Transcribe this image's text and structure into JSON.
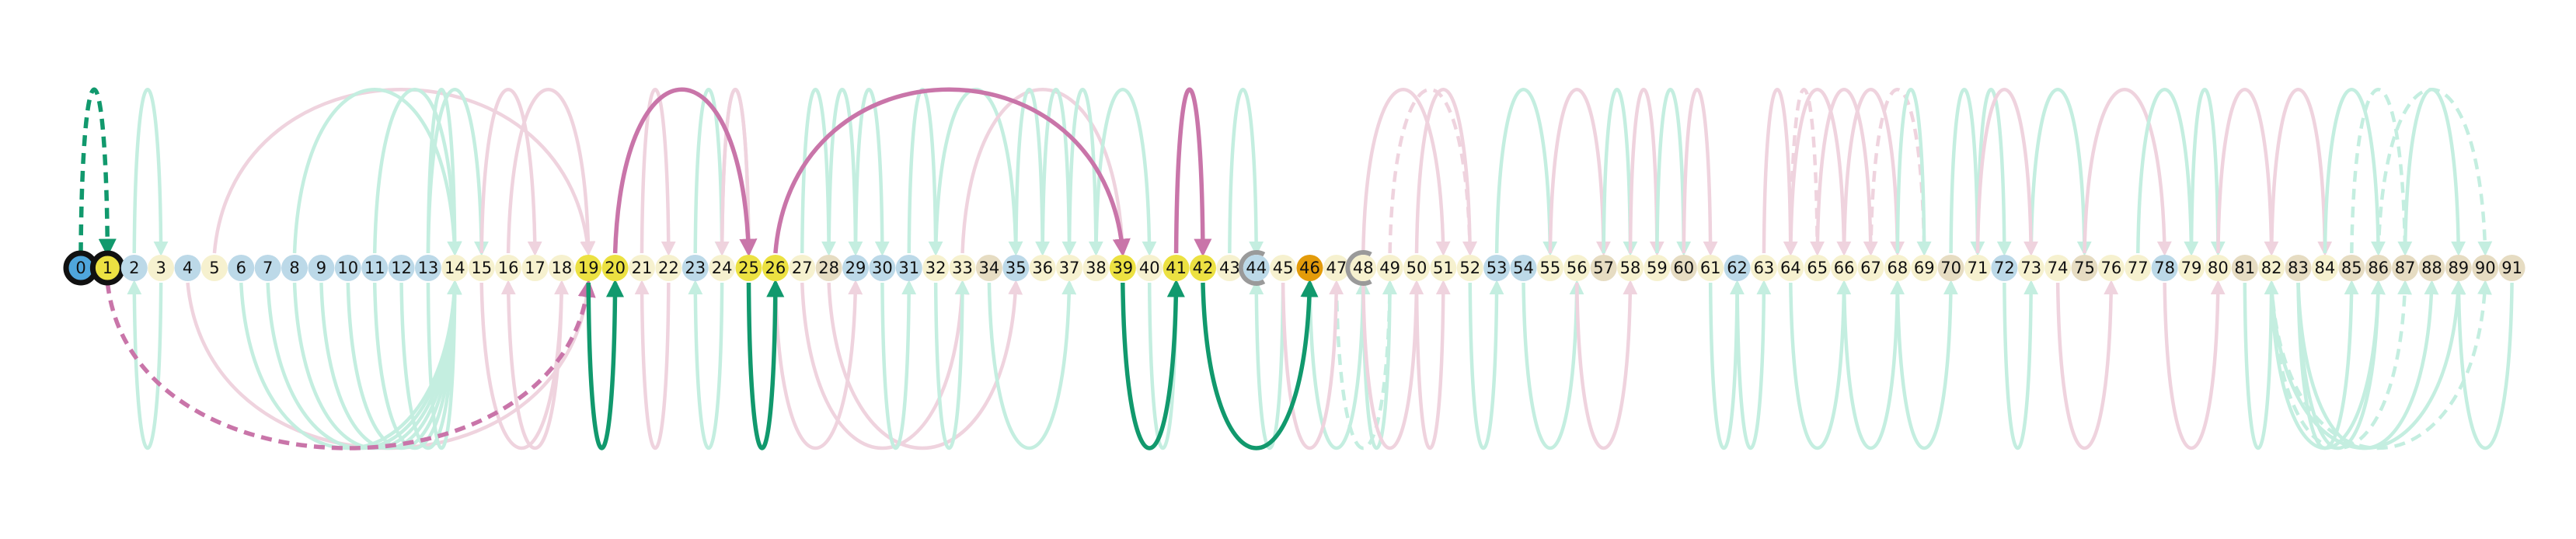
{
  "colors": {
    "node_blue": "#bcd9e8",
    "node_cream": "#f6f1cf",
    "node_tan": "#e6dcc2",
    "node_yellow": "#ece142",
    "node_orange": "#e39b0a",
    "node_start_fill": "#4fa6dc",
    "ring_black": "#111111",
    "ring_gray": "#9a9a9a",
    "green_faint": "#c4eee0",
    "pink_faint": "#efd3de",
    "green_strong": "#11996d",
    "pink_strong": "#c975a9"
  },
  "nodes": [
    {
      "label": "0",
      "fill": "node_start_fill",
      "ring": "black"
    },
    {
      "label": "1",
      "fill": "node_yellow",
      "ring": "black"
    },
    {
      "label": "2",
      "fill": "node_blue"
    },
    {
      "label": "3",
      "fill": "node_cream"
    },
    {
      "label": "4",
      "fill": "node_blue"
    },
    {
      "label": "5",
      "fill": "node_cream"
    },
    {
      "label": "6",
      "fill": "node_blue"
    },
    {
      "label": "7",
      "fill": "node_blue"
    },
    {
      "label": "8",
      "fill": "node_blue"
    },
    {
      "label": "9",
      "fill": "node_blue"
    },
    {
      "label": "10",
      "fill": "node_blue"
    },
    {
      "label": "11",
      "fill": "node_blue"
    },
    {
      "label": "12",
      "fill": "node_blue"
    },
    {
      "label": "13",
      "fill": "node_blue"
    },
    {
      "label": "14",
      "fill": "node_cream"
    },
    {
      "label": "15",
      "fill": "node_cream"
    },
    {
      "label": "16",
      "fill": "node_cream"
    },
    {
      "label": "17",
      "fill": "node_cream"
    },
    {
      "label": "18",
      "fill": "node_cream"
    },
    {
      "label": "19",
      "fill": "node_yellow"
    },
    {
      "label": "20",
      "fill": "node_yellow"
    },
    {
      "label": "21",
      "fill": "node_cream"
    },
    {
      "label": "22",
      "fill": "node_cream"
    },
    {
      "label": "23",
      "fill": "node_blue"
    },
    {
      "label": "24",
      "fill": "node_cream"
    },
    {
      "label": "25",
      "fill": "node_yellow"
    },
    {
      "label": "26",
      "fill": "node_yellow"
    },
    {
      "label": "27",
      "fill": "node_cream"
    },
    {
      "label": "28",
      "fill": "node_tan"
    },
    {
      "label": "29",
      "fill": "node_blue"
    },
    {
      "label": "30",
      "fill": "node_blue"
    },
    {
      "label": "31",
      "fill": "node_blue"
    },
    {
      "label": "32",
      "fill": "node_cream"
    },
    {
      "label": "33",
      "fill": "node_cream"
    },
    {
      "label": "34",
      "fill": "node_tan"
    },
    {
      "label": "35",
      "fill": "node_blue"
    },
    {
      "label": "36",
      "fill": "node_cream"
    },
    {
      "label": "37",
      "fill": "node_cream"
    },
    {
      "label": "38",
      "fill": "node_cream"
    },
    {
      "label": "39",
      "fill": "node_yellow"
    },
    {
      "label": "40",
      "fill": "node_cream"
    },
    {
      "label": "41",
      "fill": "node_yellow"
    },
    {
      "label": "42",
      "fill": "node_yellow"
    },
    {
      "label": "43",
      "fill": "node_cream"
    },
    {
      "label": "44",
      "fill": "node_blue",
      "ring": "gray"
    },
    {
      "label": "45",
      "fill": "node_cream"
    },
    {
      "label": "46",
      "fill": "node_orange"
    },
    {
      "label": "47",
      "fill": "node_cream"
    },
    {
      "label": "48",
      "fill": "node_cream",
      "ring": "gray"
    },
    {
      "label": "49",
      "fill": "node_cream"
    },
    {
      "label": "50",
      "fill": "node_cream"
    },
    {
      "label": "51",
      "fill": "node_cream"
    },
    {
      "label": "52",
      "fill": "node_cream"
    },
    {
      "label": "53",
      "fill": "node_blue"
    },
    {
      "label": "54",
      "fill": "node_blue"
    },
    {
      "label": "55",
      "fill": "node_cream"
    },
    {
      "label": "56",
      "fill": "node_cream"
    },
    {
      "label": "57",
      "fill": "node_tan"
    },
    {
      "label": "58",
      "fill": "node_cream"
    },
    {
      "label": "59",
      "fill": "node_cream"
    },
    {
      "label": "60",
      "fill": "node_tan"
    },
    {
      "label": "61",
      "fill": "node_cream"
    },
    {
      "label": "62",
      "fill": "node_blue"
    },
    {
      "label": "63",
      "fill": "node_cream"
    },
    {
      "label": "64",
      "fill": "node_cream"
    },
    {
      "label": "65",
      "fill": "node_cream"
    },
    {
      "label": "66",
      "fill": "node_cream"
    },
    {
      "label": "67",
      "fill": "node_cream"
    },
    {
      "label": "68",
      "fill": "node_cream"
    },
    {
      "label": "69",
      "fill": "node_cream"
    },
    {
      "label": "70",
      "fill": "node_tan"
    },
    {
      "label": "71",
      "fill": "node_cream"
    },
    {
      "label": "72",
      "fill": "node_blue"
    },
    {
      "label": "73",
      "fill": "node_cream"
    },
    {
      "label": "74",
      "fill": "node_cream"
    },
    {
      "label": "75",
      "fill": "node_tan"
    },
    {
      "label": "76",
      "fill": "node_cream"
    },
    {
      "label": "77",
      "fill": "node_cream"
    },
    {
      "label": "78",
      "fill": "node_blue"
    },
    {
      "label": "79",
      "fill": "node_cream"
    },
    {
      "label": "80",
      "fill": "node_cream"
    },
    {
      "label": "81",
      "fill": "node_tan"
    },
    {
      "label": "82",
      "fill": "node_cream"
    },
    {
      "label": "83",
      "fill": "node_tan"
    },
    {
      "label": "84",
      "fill": "node_cream"
    },
    {
      "label": "85",
      "fill": "node_tan"
    },
    {
      "label": "86",
      "fill": "node_tan"
    },
    {
      "label": "87",
      "fill": "node_tan"
    },
    {
      "label": "88",
      "fill": "node_tan"
    },
    {
      "label": "89",
      "fill": "node_tan"
    },
    {
      "label": "90",
      "fill": "node_tan"
    },
    {
      "label": "91",
      "fill": "node_tan"
    }
  ],
  "edges_faint": [
    {
      "from": 2,
      "to": 3,
      "side": "above",
      "color": "green_faint"
    },
    {
      "from": 3,
      "to": 2,
      "side": "below",
      "color": "green_faint"
    },
    {
      "from": 5,
      "to": 19,
      "side": "above",
      "color": "pink_faint"
    },
    {
      "from": 4,
      "to": 19,
      "side": "below",
      "color": "pink_faint"
    },
    {
      "from": 6,
      "to": 14,
      "side": "below",
      "color": "green_faint"
    },
    {
      "from": 7,
      "to": 14,
      "side": "below",
      "color": "green_faint"
    },
    {
      "from": 8,
      "to": 14,
      "side": "below",
      "color": "green_faint"
    },
    {
      "from": 9,
      "to": 14,
      "side": "below",
      "color": "green_faint"
    },
    {
      "from": 10,
      "to": 14,
      "side": "below",
      "color": "green_faint"
    },
    {
      "from": 11,
      "to": 14,
      "side": "below",
      "color": "green_faint"
    },
    {
      "from": 12,
      "to": 14,
      "side": "below",
      "color": "green_faint"
    },
    {
      "from": 13,
      "to": 14,
      "side": "below",
      "color": "green_faint"
    },
    {
      "from": 8,
      "to": 14,
      "side": "above",
      "color": "green_faint"
    },
    {
      "from": 11,
      "to": 14,
      "side": "above",
      "color": "green_faint"
    },
    {
      "from": 13,
      "to": 14,
      "side": "above",
      "color": "green_faint"
    },
    {
      "from": 13,
      "to": 15,
      "side": "above",
      "color": "green_faint"
    },
    {
      "from": 15,
      "to": 17,
      "side": "above",
      "color": "pink_faint"
    },
    {
      "from": 16,
      "to": 19,
      "side": "above",
      "color": "pink_faint"
    },
    {
      "from": 18,
      "to": 16,
      "side": "below",
      "color": "pink_faint"
    },
    {
      "from": 15,
      "to": 18,
      "side": "below",
      "color": "pink_faint"
    },
    {
      "from": 21,
      "to": 22,
      "side": "above",
      "color": "pink_faint"
    },
    {
      "from": 22,
      "to": 21,
      "side": "below",
      "color": "pink_faint"
    },
    {
      "from": 23,
      "to": 24,
      "side": "above",
      "color": "green_faint"
    },
    {
      "from": 24,
      "to": 23,
      "side": "below",
      "color": "green_faint"
    },
    {
      "from": 24,
      "to": 25,
      "side": "above",
      "color": "pink_faint"
    },
    {
      "from": 25,
      "to": 24,
      "side": "above",
      "color": "pink_faint"
    },
    {
      "from": 27,
      "to": 28,
      "side": "above",
      "color": "green_faint"
    },
    {
      "from": 28,
      "to": 29,
      "side": "above",
      "color": "green_faint"
    },
    {
      "from": 26,
      "to": 29,
      "side": "below",
      "color": "pink_faint"
    },
    {
      "from": 27,
      "to": 33,
      "side": "below",
      "color": "pink_faint"
    },
    {
      "from": 28,
      "to": 35,
      "side": "below",
      "color": "pink_faint"
    },
    {
      "from": 29,
      "to": 30,
      "side": "above",
      "color": "green_faint"
    },
    {
      "from": 30,
      "to": 31,
      "side": "below",
      "color": "green_faint"
    },
    {
      "from": 31,
      "to": 32,
      "side": "above",
      "color": "green_faint"
    },
    {
      "from": 32,
      "to": 33,
      "side": "below",
      "color": "green_faint"
    },
    {
      "from": 32,
      "to": 35,
      "side": "above",
      "color": "green_faint"
    },
    {
      "from": 33,
      "to": 39,
      "side": "above",
      "color": "pink_faint"
    },
    {
      "from": 34,
      "to": 37,
      "side": "below",
      "color": "green_faint"
    },
    {
      "from": 35,
      "to": 36,
      "side": "above",
      "color": "green_faint"
    },
    {
      "from": 36,
      "to": 37,
      "side": "above",
      "color": "green_faint"
    },
    {
      "from": 37,
      "to": 38,
      "side": "above",
      "color": "green_faint"
    },
    {
      "from": 38,
      "to": 40,
      "side": "above",
      "color": "green_faint"
    },
    {
      "from": 40,
      "to": 41,
      "side": "below",
      "color": "green_faint"
    },
    {
      "from": 43,
      "to": 44,
      "side": "above",
      "color": "green_faint"
    },
    {
      "from": 45,
      "to": 44,
      "side": "below",
      "color": "green_faint"
    },
    {
      "from": 46,
      "to": 48,
      "side": "below",
      "color": "green_faint"
    },
    {
      "from": 47,
      "to": 49,
      "side": "below",
      "color": "green_faint",
      "dashed": true
    },
    {
      "from": 48,
      "to": 49,
      "side": "below",
      "color": "green_faint"
    },
    {
      "from": 45,
      "to": 47,
      "side": "below",
      "color": "pink_faint"
    },
    {
      "from": 48,
      "to": 50,
      "side": "below",
      "color": "pink_faint"
    },
    {
      "from": 50,
      "to": 52,
      "side": "above",
      "color": "pink_faint"
    },
    {
      "from": 49,
      "to": 52,
      "side": "above",
      "color": "pink_faint",
      "dashed": true
    },
    {
      "from": 48,
      "to": 51,
      "side": "above",
      "color": "pink_faint"
    },
    {
      "from": 50,
      "to": 51,
      "side": "below",
      "color": "pink_faint"
    },
    {
      "from": 52,
      "to": 53,
      "side": "below",
      "color": "green_faint"
    },
    {
      "from": 53,
      "to": 55,
      "side": "above",
      "color": "green_faint"
    },
    {
      "from": 54,
      "to": 56,
      "side": "below",
      "color": "green_faint"
    },
    {
      "from": 55,
      "to": 57,
      "side": "above",
      "color": "pink_faint"
    },
    {
      "from": 56,
      "to": 58,
      "side": "below",
      "color": "pink_faint"
    },
    {
      "from": 57,
      "to": 58,
      "side": "above",
      "color": "green_faint"
    },
    {
      "from": 58,
      "to": 59,
      "side": "above",
      "color": "pink_faint"
    },
    {
      "from": 59,
      "to": 60,
      "side": "above",
      "color": "green_faint"
    },
    {
      "from": 60,
      "to": 61,
      "side": "above",
      "color": "pink_faint"
    },
    {
      "from": 61,
      "to": 62,
      "side": "below",
      "color": "green_faint"
    },
    {
      "from": 62,
      "to": 63,
      "side": "below",
      "color": "green_faint"
    },
    {
      "from": 63,
      "to": 64,
      "side": "above",
      "color": "pink_faint"
    },
    {
      "from": 64,
      "to": 65,
      "side": "above",
      "color": "pink_faint",
      "dashed": true
    },
    {
      "from": 64,
      "to": 66,
      "side": "above",
      "color": "pink_faint"
    },
    {
      "from": 65,
      "to": 67,
      "side": "above",
      "color": "pink_faint"
    },
    {
      "from": 66,
      "to": 68,
      "side": "above",
      "color": "pink_faint"
    },
    {
      "from": 67,
      "to": 69,
      "side": "above",
      "color": "pink_faint",
      "dashed": true
    },
    {
      "from": 68,
      "to": 69,
      "side": "above",
      "color": "green_faint"
    },
    {
      "from": 64,
      "to": 66,
      "side": "below",
      "color": "green_faint"
    },
    {
      "from": 66,
      "to": 68,
      "side": "below",
      "color": "green_faint"
    },
    {
      "from": 68,
      "to": 70,
      "side": "below",
      "color": "green_faint"
    },
    {
      "from": 70,
      "to": 71,
      "side": "above",
      "color": "green_faint"
    },
    {
      "from": 71,
      "to": 72,
      "side": "above",
      "color": "green_faint"
    },
    {
      "from": 72,
      "to": 73,
      "side": "below",
      "color": "green_faint"
    },
    {
      "from": 73,
      "to": 75,
      "side": "above",
      "color": "green_faint"
    },
    {
      "from": 71,
      "to": 73,
      "side": "above",
      "color": "pink_faint"
    },
    {
      "from": 74,
      "to": 76,
      "side": "below",
      "color": "pink_faint"
    },
    {
      "from": 75,
      "to": 78,
      "side": "above",
      "color": "pink_faint"
    },
    {
      "from": 77,
      "to": 79,
      "side": "above",
      "color": "green_faint"
    },
    {
      "from": 79,
      "to": 80,
      "side": "above",
      "color": "green_faint"
    },
    {
      "from": 78,
      "to": 80,
      "side": "below",
      "color": "pink_faint"
    },
    {
      "from": 80,
      "to": 82,
      "side": "above",
      "color": "pink_faint"
    },
    {
      "from": 82,
      "to": 84,
      "side": "above",
      "color": "pink_faint"
    },
    {
      "from": 81,
      "to": 82,
      "side": "below",
      "color": "green_faint"
    },
    {
      "from": 83,
      "to": 85,
      "side": "below",
      "color": "green_faint"
    },
    {
      "from": 83,
      "to": 86,
      "side": "below",
      "color": "green_faint"
    },
    {
      "from": 82,
      "to": 86,
      "side": "below",
      "color": "green_faint"
    },
    {
      "from": 82,
      "to": 87,
      "side": "below",
      "color": "green_faint",
      "dashed": true
    },
    {
      "from": 83,
      "to": 88,
      "side": "below",
      "color": "green_faint"
    },
    {
      "from": 82,
      "to": 89,
      "side": "below",
      "color": "green_faint"
    },
    {
      "from": 82,
      "to": 90,
      "side": "below",
      "color": "green_faint",
      "dashed": true
    },
    {
      "from": 84,
      "to": 86,
      "side": "above",
      "color": "green_faint"
    },
    {
      "from": 85,
      "to": 87,
      "side": "above",
      "color": "green_faint",
      "dashed": true
    },
    {
      "from": 87,
      "to": 89,
      "side": "above",
      "color": "green_faint"
    },
    {
      "from": 86,
      "to": 90,
      "side": "above",
      "color": "green_faint",
      "dashed": true
    },
    {
      "from": 91,
      "to": 89,
      "side": "below",
      "color": "green_faint"
    }
  ],
  "edges_strong": [
    {
      "from": 0,
      "to": 1,
      "side": "above",
      "color": "green_strong",
      "dashed": true
    },
    {
      "from": 1,
      "to": 19,
      "side": "below",
      "color": "pink_strong",
      "dashed": true
    },
    {
      "from": 20,
      "to": 25,
      "side": "above",
      "color": "pink_strong"
    },
    {
      "from": 19,
      "to": 20,
      "side": "below",
      "color": "green_strong"
    },
    {
      "from": 25,
      "to": 26,
      "side": "below",
      "color": "green_strong"
    },
    {
      "from": 26,
      "to": 39,
      "side": "above",
      "color": "pink_strong"
    },
    {
      "from": 39,
      "to": 41,
      "side": "below",
      "color": "green_strong"
    },
    {
      "from": 41,
      "to": 42,
      "side": "above",
      "color": "pink_strong"
    },
    {
      "from": 42,
      "to": 46,
      "side": "below",
      "color": "green_strong"
    }
  ]
}
